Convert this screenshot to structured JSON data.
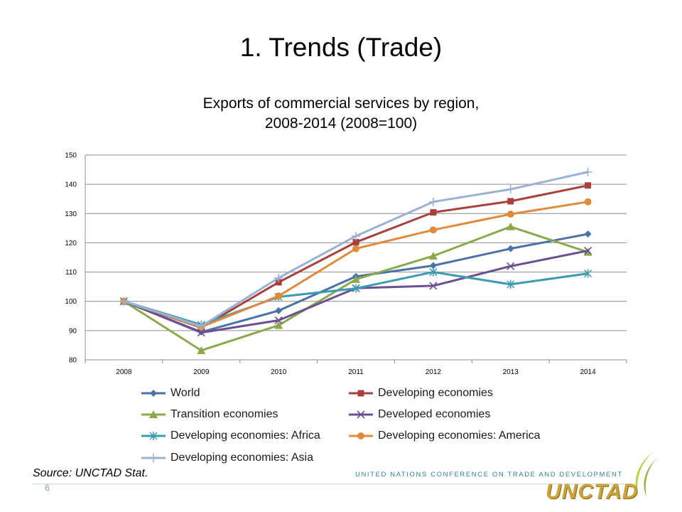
{
  "slide": {
    "title": "1. Trends (Trade)",
    "source": "Source: UNCTAD Stat.",
    "page_number": "6",
    "organization": "UNITED NATIONS CONFERENCE ON TRADE AND DEVELOPMENT",
    "logo": "UNCTAD"
  },
  "chart_data": {
    "type": "line",
    "title_lines": [
      "Exports of commercial services by region,",
      "2008-2014 (2008=100)"
    ],
    "xlabel": "",
    "ylabel": "",
    "categories": [
      "2008",
      "2009",
      "2010",
      "2011",
      "2012",
      "2013",
      "2014"
    ],
    "ylim": [
      80,
      150
    ],
    "yticks": [
      80,
      90,
      100,
      110,
      120,
      130,
      140,
      150
    ],
    "grid": "horizontal",
    "legend_placement": "bottom",
    "series": [
      {
        "name": "World",
        "color": "#4a72a8",
        "marker": "diamond",
        "values": [
          100,
          89.5,
          96.8,
          108.5,
          112.2,
          118.0,
          123.0
        ]
      },
      {
        "name": "Developing economies",
        "color": "#a8413e",
        "marker": "square",
        "values": [
          100,
          91.0,
          106.5,
          120.2,
          130.4,
          134.2,
          139.6
        ]
      },
      {
        "name": "Transition economies",
        "color": "#8aa94a",
        "marker": "triangle",
        "values": [
          100,
          83.2,
          91.8,
          107.5,
          115.5,
          125.5,
          116.8
        ]
      },
      {
        "name": "Developed economies",
        "color": "#6b4f91",
        "marker": "x",
        "values": [
          100,
          89.3,
          93.5,
          104.5,
          105.3,
          112.0,
          117.3
        ]
      },
      {
        "name": "Developing economies: Africa",
        "color": "#3b9bb0",
        "marker": "star",
        "values": [
          100,
          92.0,
          101.5,
          104.4,
          110.0,
          105.8,
          109.5
        ]
      },
      {
        "name": "Developing economies: America",
        "color": "#e08a3c",
        "marker": "circle",
        "values": [
          100,
          91.2,
          101.8,
          118.0,
          124.4,
          129.8,
          134.0
        ]
      },
      {
        "name": "Developing economies: Asia",
        "color": "#99b2d4",
        "marker": "plus",
        "values": [
          100,
          91.5,
          108.0,
          122.3,
          134.0,
          138.3,
          144.2
        ]
      }
    ]
  }
}
